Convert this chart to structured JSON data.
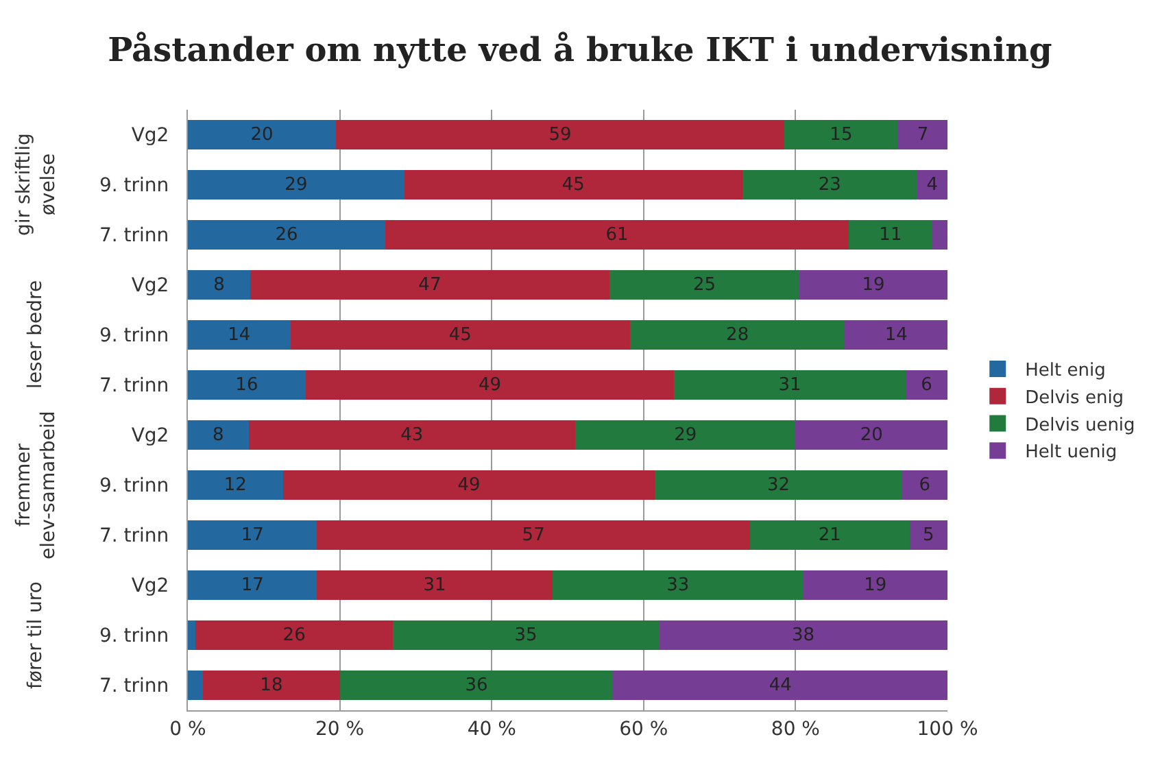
{
  "chart_data": {
    "type": "bar",
    "title": "Påstander om nytte ved å bruke IKT i undervisning",
    "orientation": "horizontal",
    "stacked": true,
    "categories": [
      "Vg2",
      "9. trinn",
      "7. trinn",
      "Vg2",
      "9. trinn",
      "7. trinn",
      "Vg2",
      "9. trinn",
      "7. trinn",
      "Vg2",
      "9. trinn",
      "7. trinn"
    ],
    "annotations": [
      "gir skriftlig øvelse",
      "leser bedre",
      "fremmer elev-samarbeid",
      "fører til uro"
    ],
    "series": [
      {
        "name": "Helt enig",
        "color": "#2369a0",
        "values": [
          19.5,
          28.5,
          26,
          8.2,
          13.5,
          15.5,
          8,
          12.5,
          17,
          17,
          1,
          2
        ],
        "value_labels": [
          "20",
          "29",
          "26",
          "8",
          "14",
          "16",
          "8",
          "12",
          "17",
          "17",
          null,
          null
        ]
      },
      {
        "name": "Delvis enig",
        "color": "#b0263a",
        "values": [
          59,
          44.5,
          61,
          47.3,
          44.7,
          48.5,
          43,
          49,
          57,
          31,
          26,
          18
        ],
        "value_labels": [
          "59",
          "45",
          "61",
          "47",
          "45",
          "49",
          "43",
          "49",
          "57",
          "31",
          "26",
          "18"
        ]
      },
      {
        "name": "Delvis uenig",
        "color": "#237a3e",
        "values": [
          15,
          23,
          11,
          25,
          28.3,
          30.5,
          29,
          32.5,
          21,
          33,
          35,
          36
        ],
        "value_labels": [
          "15",
          "23",
          "11",
          "25",
          "28",
          "31",
          "29",
          "32",
          "21",
          "33",
          "35",
          "36"
        ]
      },
      {
        "name": "Helt uenig",
        "color": "#763d94",
        "values": [
          6.5,
          4,
          2,
          19.5,
          13.5,
          5.5,
          20,
          6,
          5,
          19,
          38,
          44
        ],
        "value_labels": [
          "7",
          "4",
          null,
          "19",
          "14",
          "6",
          "20",
          "6",
          "5",
          "19",
          "38",
          "44"
        ]
      }
    ],
    "xlim": [
      0,
      100
    ],
    "xticks": [
      {
        "value": 0,
        "label": "0 %"
      },
      {
        "value": 20,
        "label": "20 %"
      },
      {
        "value": 40,
        "label": "40 %"
      },
      {
        "value": 60,
        "label": "60 %"
      },
      {
        "value": 80,
        "label": "80 %"
      },
      {
        "value": 100,
        "label": "100 %"
      }
    ],
    "grid": "x",
    "legend": "right"
  }
}
